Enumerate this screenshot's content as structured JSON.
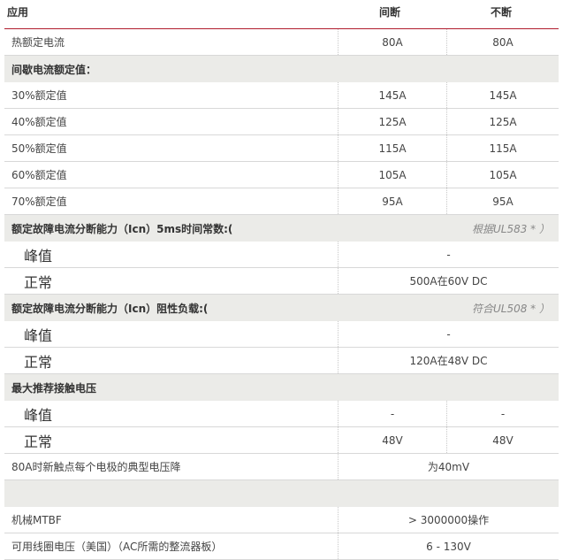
{
  "header": {
    "col0": "应用",
    "col1": "间断",
    "col2": "不断"
  },
  "accent_color": "#b01c2e",
  "rows": [
    {
      "type": "data",
      "label": "热额定电流",
      "v1": "80A",
      "v2": "80A"
    },
    {
      "type": "section",
      "label": "间歇电流额定值："
    },
    {
      "type": "data",
      "label": "30%额定值",
      "v1": "145A",
      "v2": "145A"
    },
    {
      "type": "data",
      "label": "40%额定值",
      "v1": "125A",
      "v2": "125A"
    },
    {
      "type": "data",
      "label": "50%额定值",
      "v1": "115A",
      "v2": "115A"
    },
    {
      "type": "data",
      "label": "60%额定值",
      "v1": "105A",
      "v2": "105A"
    },
    {
      "type": "data",
      "label": "70%额定值",
      "v1": "95A",
      "v2": "95A"
    },
    {
      "type": "section",
      "label": "额定故障电流分断能力（Icn）5ms时间常数:(",
      "note": "根据UL583 * ）"
    },
    {
      "type": "big-span",
      "label": "峰值",
      "v": "-"
    },
    {
      "type": "big-span",
      "label": "正常",
      "v": "500A在60V DC"
    },
    {
      "type": "section",
      "label": "额定故障电流分断能力（Icn）阻性负载:(",
      "note": "符合UL508 * ）"
    },
    {
      "type": "big-span",
      "label": "峰值",
      "v": "-"
    },
    {
      "type": "big-span",
      "label": "正常",
      "v": "120A在48V DC"
    },
    {
      "type": "section",
      "label": "最大推荐接触电压"
    },
    {
      "type": "big",
      "label": "峰值",
      "v1": "-",
      "v2": "-"
    },
    {
      "type": "big",
      "label": "正常",
      "v1": "48V",
      "v2": "48V"
    },
    {
      "type": "span",
      "label": "80A时新触点每个电极的典型电压降",
      "v": "为40mV"
    },
    {
      "type": "section",
      "label": ""
    },
    {
      "type": "span",
      "label": "机械MTBF",
      "v": "> 3000000操作"
    },
    {
      "type": "span",
      "label": "可用线圈电压（美国）（AC所需的整流器板）",
      "v": "6 - 130V"
    }
  ]
}
